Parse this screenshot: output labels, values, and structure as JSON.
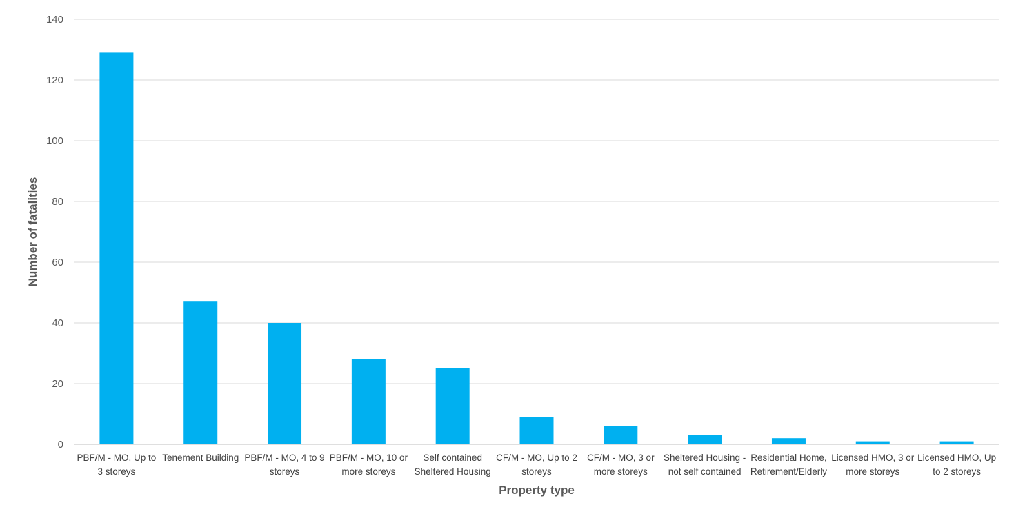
{
  "chart_data": {
    "type": "bar",
    "title": "",
    "xlabel": "Property type",
    "ylabel": "Number of fatalities",
    "ylim": [
      0,
      140
    ],
    "yticks": [
      0,
      20,
      40,
      60,
      80,
      100,
      120,
      140
    ],
    "grid": true,
    "legend": "none",
    "bar_color": "#00b0f0",
    "categories": [
      [
        "PBF/M - MO, Up to",
        "3 storeys"
      ],
      [
        "Tenement Building"
      ],
      [
        "PBF/M - MO, 4 to 9",
        "storeys"
      ],
      [
        "PBF/M - MO, 10 or",
        "more storeys"
      ],
      [
        "Self contained",
        "Sheltered Housing"
      ],
      [
        "CF/M - MO, Up to 2",
        "storeys"
      ],
      [
        "CF/M - MO, 3 or",
        "more storeys"
      ],
      [
        "Sheltered Housing -",
        "not self contained"
      ],
      [
        "Residential Home,",
        "Retirement/Elderly"
      ],
      [
        "Licensed HMO, 3 or",
        "more storeys"
      ],
      [
        "Licensed HMO, Up",
        "to 2 storeys"
      ]
    ],
    "values": [
      129,
      47,
      40,
      28,
      25,
      9,
      6,
      3,
      2,
      1,
      1
    ]
  }
}
